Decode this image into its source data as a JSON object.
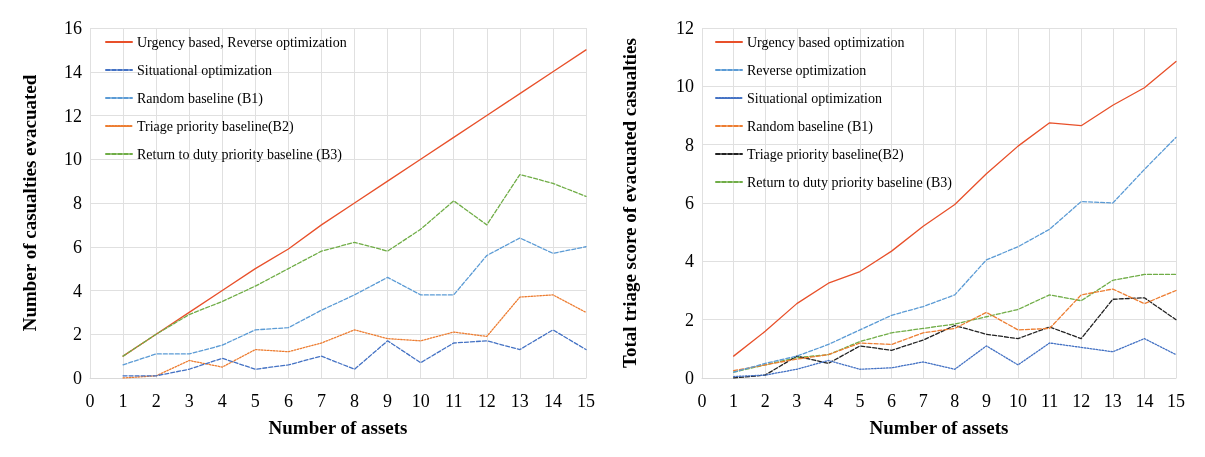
{
  "chart_data": [
    {
      "type": "line",
      "xlabel": "Number of assets",
      "ylabel": "Number of casualties evacuated",
      "x": [
        1,
        2,
        3,
        4,
        5,
        6,
        7,
        8,
        9,
        10,
        11,
        12,
        13,
        14,
        15
      ],
      "xlim": [
        0,
        15
      ],
      "xticks": [
        0,
        1,
        2,
        3,
        4,
        5,
        6,
        7,
        8,
        9,
        10,
        11,
        12,
        13,
        14,
        15
      ],
      "ylim": [
        0,
        16
      ],
      "yticks": [
        0,
        2,
        4,
        6,
        8,
        10,
        12,
        14,
        16
      ],
      "grid": true,
      "legend": "top left",
      "marker": "none",
      "series": [
        {
          "name": "Urgency based, Reverse optimization",
          "color": "#e8502a",
          "line_style": "solid",
          "values": [
            1,
            2,
            3,
            4,
            5,
            5.9,
            7,
            8,
            9,
            10,
            11,
            12,
            13,
            14,
            15
          ]
        },
        {
          "name": "Situational optimization",
          "color": "#4472c4",
          "line_style": "dashed",
          "values": [
            0.1,
            0.1,
            0.4,
            0.9,
            0.4,
            0.6,
            1.0,
            0.4,
            1.7,
            0.7,
            1.6,
            1.7,
            1.3,
            2.2,
            1.3
          ]
        },
        {
          "name": "Random baseline (B1)",
          "color": "#5b9bd5",
          "line_style": "dashed",
          "values": [
            0.6,
            1.1,
            1.1,
            1.5,
            2.2,
            2.3,
            3.1,
            3.8,
            4.6,
            3.8,
            3.8,
            5.6,
            6.4,
            5.7,
            6.0
          ]
        },
        {
          "name": "Triage priority baseline(B2)",
          "color": "#ed7d31",
          "line_style": "dotted",
          "values": [
            0,
            0.1,
            0.8,
            0.5,
            1.3,
            1.2,
            1.6,
            2.2,
            1.8,
            1.7,
            2.1,
            1.9,
            3.7,
            3.8,
            3.0
          ]
        },
        {
          "name": "Return to duty priority baseline (B3)",
          "color": "#70ad47",
          "line_style": "dashed",
          "values": [
            1,
            2,
            2.9,
            3.5,
            4.2,
            5.0,
            5.8,
            6.2,
            5.8,
            6.8,
            8.1,
            7.0,
            9.3,
            8.9,
            8.3
          ]
        }
      ]
    },
    {
      "type": "line",
      "xlabel": "Number of assets",
      "ylabel": "Total triage score of evacuated casualties",
      "x": [
        1,
        2,
        3,
        4,
        5,
        6,
        7,
        8,
        9,
        10,
        11,
        12,
        13,
        14,
        15
      ],
      "xlim": [
        0,
        15
      ],
      "xticks": [
        0,
        1,
        2,
        3,
        4,
        5,
        6,
        7,
        8,
        9,
        10,
        11,
        12,
        13,
        14,
        15
      ],
      "ylim": [
        0,
        12
      ],
      "yticks": [
        0,
        2,
        4,
        6,
        8,
        10,
        12
      ],
      "grid": true,
      "legend": "top left",
      "marker": "none",
      "series": [
        {
          "name": "Urgency based optimization",
          "color": "#e8502a",
          "line_style": "solid",
          "values": [
            0.75,
            1.6,
            2.55,
            3.25,
            3.65,
            4.35,
            5.2,
            5.95,
            7.0,
            7.95,
            8.75,
            8.65,
            9.35,
            9.95,
            10.85
          ]
        },
        {
          "name": "Reverse optimization",
          "color": "#5b9bd5",
          "line_style": "dashed",
          "values": [
            0.2,
            0.5,
            0.75,
            1.15,
            1.65,
            2.15,
            2.45,
            2.85,
            4.05,
            4.5,
            5.1,
            6.05,
            6.0,
            7.15,
            8.25
          ]
        },
        {
          "name": "Situational optimization",
          "color": "#4472c4",
          "line_style": "dotted",
          "values": [
            0.05,
            0.1,
            0.3,
            0.6,
            0.3,
            0.35,
            0.55,
            0.3,
            1.1,
            0.45,
            1.2,
            1.05,
            0.9,
            1.35,
            0.8
          ]
        },
        {
          "name": "Random baseline (B1)",
          "color": "#ed7d31",
          "line_style": "dashed",
          "values": [
            0.25,
            0.45,
            0.65,
            0.8,
            1.2,
            1.15,
            1.55,
            1.7,
            2.25,
            1.65,
            1.7,
            2.85,
            3.05,
            2.55,
            3.0
          ]
        },
        {
          "name": "Triage priority baseline(B2)",
          "color": "#222222",
          "line_style": "dashed",
          "values": [
            0,
            0.1,
            0.75,
            0.5,
            1.1,
            0.95,
            1.3,
            1.8,
            1.5,
            1.35,
            1.75,
            1.35,
            2.7,
            2.75,
            2.0
          ]
        },
        {
          "name": "Return to duty priority baseline (B3)",
          "color": "#70ad47",
          "line_style": "dashed",
          "values": [
            0.2,
            0.45,
            0.7,
            0.8,
            1.25,
            1.55,
            1.7,
            1.85,
            2.1,
            2.35,
            2.85,
            2.65,
            3.35,
            3.55,
            3.55
          ]
        }
      ]
    }
  ]
}
